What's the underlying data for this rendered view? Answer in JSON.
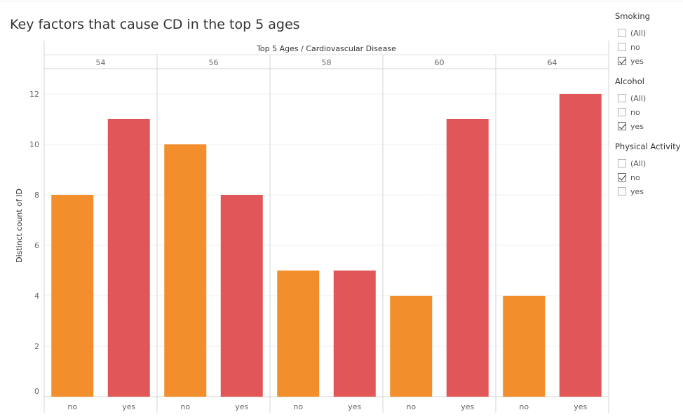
{
  "title": "Key factors that cause CD in the top 5 ages",
  "chart_data": {
    "type": "bar",
    "header_label": "Top 5 Ages  /  Cardiovascular Disease",
    "ylabel": "Distinct count of ID",
    "ylim": [
      0,
      13
    ],
    "yticks": [
      0,
      2,
      4,
      6,
      8,
      10,
      12
    ],
    "groups": [
      "54",
      "56",
      "58",
      "60",
      "64"
    ],
    "categories": [
      "no",
      "yes"
    ],
    "values": [
      [
        8,
        11
      ],
      [
        10,
        8
      ],
      [
        5,
        5
      ],
      [
        4,
        11
      ],
      [
        4,
        12
      ]
    ],
    "colors": {
      "no": "#f28e2b",
      "yes": "#e15759"
    },
    "grid": true
  },
  "filters": [
    {
      "title": "Smoking",
      "options": [
        {
          "label": "(All)",
          "checked": false
        },
        {
          "label": "no",
          "checked": false
        },
        {
          "label": "yes",
          "checked": true
        }
      ]
    },
    {
      "title": "Alcohol",
      "options": [
        {
          "label": "(All)",
          "checked": false
        },
        {
          "label": "no",
          "checked": false
        },
        {
          "label": "yes",
          "checked": true
        }
      ]
    },
    {
      "title": "Physical Activity",
      "options": [
        {
          "label": "(All)",
          "checked": false
        },
        {
          "label": "no",
          "checked": true
        },
        {
          "label": "yes",
          "checked": false
        }
      ]
    }
  ]
}
